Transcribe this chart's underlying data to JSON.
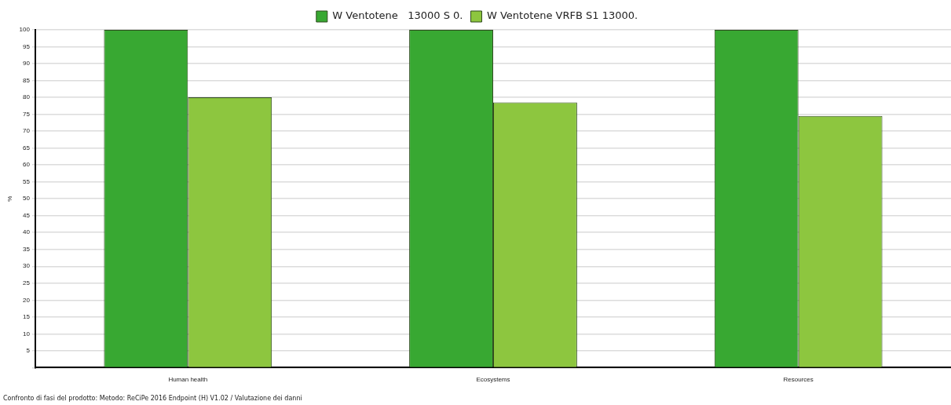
{
  "chart_data": {
    "type": "bar",
    "ylabel": "%",
    "categories": [
      "Human health",
      "Ecosystems",
      "Resources"
    ],
    "series": [
      {
        "name": "W Ventotene   13000 S 0.",
        "color": "#38a832",
        "values": [
          100,
          100,
          100
        ]
      },
      {
        "name": "W Ventotene VRFB S1 13000.",
        "color": "#8dc63f",
        "values": [
          80,
          78.5,
          74.5
        ]
      }
    ],
    "ylim": [
      0,
      100
    ],
    "yticks": [
      {
        "value": 0,
        "label": null
      },
      5,
      10,
      15,
      20,
      25,
      30,
      35,
      40,
      45,
      50,
      55,
      60,
      65,
      70,
      75,
      80,
      85,
      90,
      95,
      100
    ],
    "grid": "y",
    "legend": "top",
    "annotations": [
      "Confronto di fasi del prodotto: Metodo: ReCiPe 2016 Endpoint (H) V1.02 / Valutazione dei danni"
    ]
  }
}
